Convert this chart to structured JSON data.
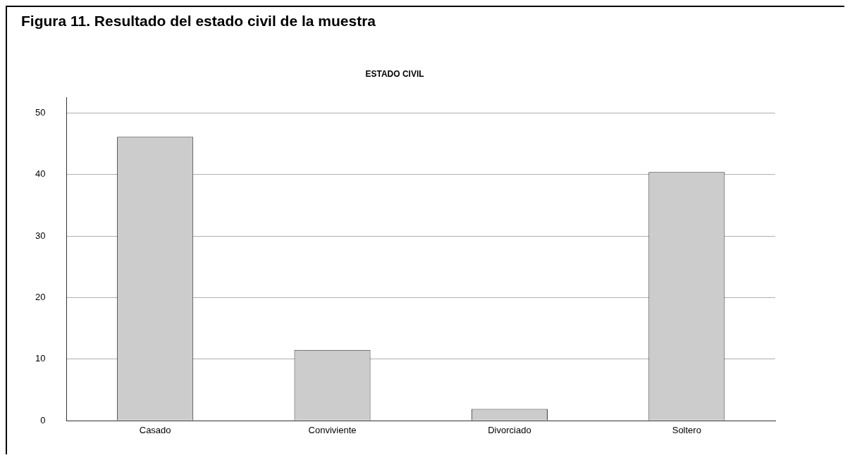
{
  "chart_data": {
    "type": "bar",
    "title": "ESTADO CIVIL",
    "annotations": [
      "Figura 11. Resultado del estado civil de la muestra"
    ],
    "categories": [
      "Casado",
      "Conviviente",
      "Divorciado",
      "Soltero"
    ],
    "values": [
      46.1,
      11.5,
      1.9,
      40.4
    ],
    "color": "#cccccc",
    "ylim": [
      0,
      52.5
    ],
    "yticks": [
      0,
      10,
      20,
      30,
      40,
      50
    ],
    "grid": "y",
    "legend": false
  }
}
